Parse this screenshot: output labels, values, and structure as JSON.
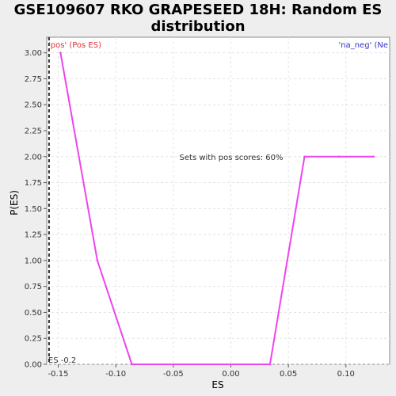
{
  "chart_data": {
    "type": "line",
    "title_line1": "GSE109607 RKO GRAPESEED 18H: Random ES",
    "title_line2": "distribution",
    "xlabel": "ES",
    "ylabel": "P(ES)",
    "xlim": [
      -0.16,
      0.138
    ],
    "ylim": [
      0,
      3.15
    ],
    "xticks": [
      -0.15,
      -0.1,
      -0.05,
      0.0,
      0.05,
      0.1
    ],
    "xtick_labels": [
      "-0.15",
      "-0.10",
      "-0.05",
      "0.00",
      "0.05",
      "0.10"
    ],
    "yticks": [
      0,
      0.25,
      0.5,
      0.75,
      1.0,
      1.25,
      1.5,
      1.75,
      2.0,
      2.25,
      2.5,
      2.75,
      3.0
    ],
    "ytick_labels": [
      "0.00",
      "0.25",
      "0.50",
      "0.75",
      "1.00",
      "1.25",
      "1.50",
      "1.75",
      "2.00",
      "2.25",
      "2.50",
      "2.75",
      "3.00"
    ],
    "grid": true,
    "series": [
      {
        "color": "#ee44ee",
        "x": [
          -0.148,
          -0.116,
          -0.086,
          0.034,
          0.064,
          0.094,
          0.124
        ],
        "y": [
          3.0,
          1.0,
          0.0,
          0.0,
          2.0,
          2.0,
          2.0
        ]
      }
    ],
    "es_line": {
      "x": -0.158,
      "label": "ES -0.2"
    },
    "annotations": {
      "pos_label": "'pos' (Pos ES)",
      "neg_label": "'na_neg' (Ne",
      "center_text": "Sets with pos scores: 60%"
    },
    "colors": {
      "pos": "#dd3333",
      "neg": "#3333cc",
      "line": "#ee44ee"
    }
  }
}
